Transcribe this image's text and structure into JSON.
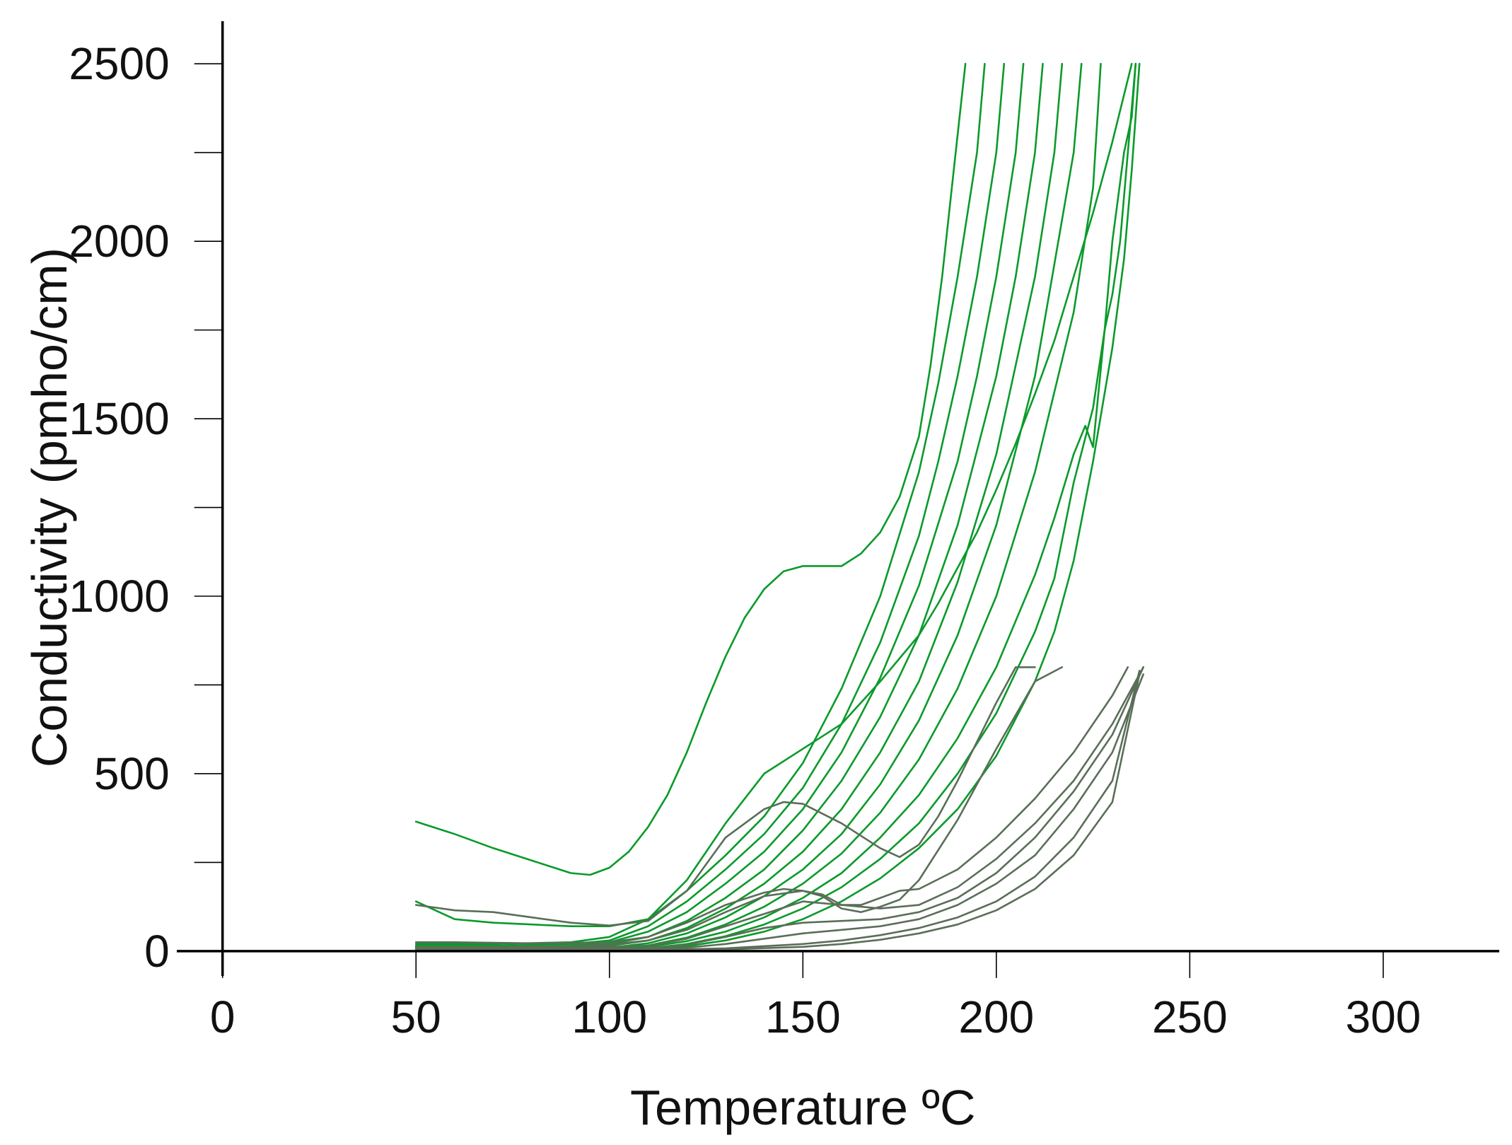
{
  "chart_data": {
    "type": "line",
    "title": "",
    "xlabel": "Temperature ºC",
    "ylabel": "Conductivity (pmho/cm)",
    "xlim": [
      -10,
      330
    ],
    "ylim": [
      -70,
      2620
    ],
    "xticks": [
      0,
      50,
      100,
      150,
      200,
      250,
      300
    ],
    "xtick_labels": [
      "0",
      "50",
      "100",
      "150",
      "200",
      "250",
      "300"
    ],
    "yticks": [
      0,
      500,
      1000,
      1500,
      2000,
      2500
    ],
    "ytick_labels": [
      "0",
      "500",
      "1000",
      "1500",
      "2000",
      "2500"
    ],
    "y_minor_ticks": [
      250,
      750,
      1250,
      1750,
      2250
    ],
    "grid": false,
    "legend": "none",
    "colors": {
      "green": "#0a9a2a",
      "gray": "#5a6e58",
      "axis": "#000000"
    },
    "series": [
      {
        "color": "green",
        "x": [
          50,
          60,
          70,
          80,
          90,
          95,
          100,
          105,
          110,
          115,
          120,
          125,
          130,
          135,
          140,
          145,
          150,
          155,
          160,
          165,
          170,
          175,
          180,
          183,
          186,
          189,
          192
        ],
        "y": [
          365,
          330,
          290,
          255,
          220,
          215,
          235,
          280,
          350,
          440,
          560,
          700,
          830,
          940,
          1020,
          1070,
          1085,
          1085,
          1085,
          1120,
          1180,
          1280,
          1450,
          1650,
          1900,
          2200,
          2500
        ]
      },
      {
        "color": "green",
        "x": [
          50,
          60,
          70,
          80,
          90,
          100,
          110,
          120,
          130,
          140,
          150,
          160,
          170,
          180,
          185,
          190,
          195,
          200,
          205,
          210,
          215,
          220,
          225,
          230,
          235
        ],
        "y": [
          140,
          90,
          80,
          75,
          70,
          70,
          90,
          200,
          360,
          500,
          570,
          640,
          760,
          890,
          980,
          1080,
          1180,
          1300,
          1430,
          1570,
          1720,
          1900,
          2080,
          2280,
          2500
        ]
      },
      {
        "color": "green",
        "x": [
          50,
          70,
          90,
          100,
          110,
          120,
          130,
          140,
          150,
          160,
          170,
          180,
          185,
          190,
          195,
          197
        ],
        "y": [
          20,
          20,
          25,
          40,
          90,
          170,
          270,
          380,
          530,
          740,
          1000,
          1350,
          1600,
          1900,
          2250,
          2500
        ]
      },
      {
        "color": "green",
        "x": [
          50,
          70,
          90,
          100,
          110,
          120,
          130,
          140,
          150,
          160,
          170,
          180,
          185,
          190,
          195,
          200,
          202
        ],
        "y": [
          15,
          15,
          20,
          30,
          70,
          140,
          230,
          330,
          460,
          640,
          870,
          1170,
          1380,
          1620,
          1900,
          2250,
          2500
        ]
      },
      {
        "color": "green",
        "x": [
          50,
          70,
          90,
          100,
          110,
          120,
          130,
          140,
          150,
          160,
          170,
          180,
          190,
          195,
          200,
          205,
          207
        ],
        "y": [
          10,
          10,
          15,
          25,
          55,
          110,
          190,
          280,
          400,
          560,
          770,
          1030,
          1380,
          1620,
          1900,
          2250,
          2500
        ]
      },
      {
        "color": "green",
        "x": [
          50,
          70,
          90,
          100,
          110,
          120,
          130,
          140,
          150,
          160,
          170,
          180,
          190,
          200,
          205,
          210,
          212
        ],
        "y": [
          8,
          8,
          10,
          20,
          40,
          85,
          150,
          230,
          340,
          480,
          660,
          890,
          1200,
          1620,
          1900,
          2250,
          2500
        ]
      },
      {
        "color": "green",
        "x": [
          50,
          70,
          90,
          100,
          110,
          120,
          130,
          140,
          150,
          160,
          170,
          180,
          190,
          200,
          210,
          215,
          217
        ],
        "y": [
          6,
          6,
          8,
          15,
          30,
          65,
          120,
          190,
          280,
          400,
          560,
          760,
          1040,
          1400,
          1900,
          2250,
          2500
        ]
      },
      {
        "color": "green",
        "x": [
          50,
          70,
          90,
          100,
          110,
          120,
          130,
          140,
          150,
          160,
          170,
          180,
          190,
          200,
          210,
          220,
          222
        ],
        "y": [
          5,
          5,
          6,
          10,
          22,
          50,
          95,
          155,
          230,
          330,
          470,
          650,
          890,
          1200,
          1620,
          2250,
          2500
        ]
      },
      {
        "color": "green",
        "x": [
          50,
          70,
          90,
          100,
          110,
          120,
          130,
          140,
          150,
          160,
          170,
          180,
          190,
          200,
          210,
          220,
          225,
          227
        ],
        "y": [
          4,
          4,
          5,
          8,
          16,
          38,
          75,
          125,
          190,
          275,
          390,
          540,
          740,
          1000,
          1350,
          1800,
          2150,
          2500
        ]
      },
      {
        "color": "green",
        "x": [
          50,
          70,
          90,
          100,
          110,
          120,
          130,
          140,
          150,
          160,
          170,
          180,
          190,
          200,
          210,
          215,
          220,
          223,
          225,
          228,
          230,
          233,
          235,
          236
        ],
        "y": [
          3,
          3,
          4,
          6,
          12,
          28,
          55,
          95,
          150,
          220,
          320,
          440,
          600,
          800,
          1060,
          1220,
          1400,
          1480,
          1420,
          1750,
          2000,
          2250,
          2350,
          2500
        ]
      },
      {
        "color": "green",
        "x": [
          50,
          70,
          90,
          100,
          110,
          120,
          130,
          140,
          150,
          160,
          170,
          180,
          190,
          200,
          210,
          215,
          220,
          225,
          228,
          230,
          232,
          234,
          236
        ],
        "y": [
          2,
          2,
          3,
          4,
          8,
          20,
          42,
          75,
          120,
          180,
          260,
          360,
          500,
          670,
          900,
          1050,
          1320,
          1530,
          1750,
          1850,
          2000,
          2250,
          2500
        ]
      },
      {
        "color": "green",
        "x": [
          50,
          70,
          90,
          100,
          110,
          120,
          130,
          140,
          150,
          160,
          170,
          180,
          190,
          200,
          210,
          215,
          220,
          225,
          230,
          233,
          235,
          237
        ],
        "y": [
          1,
          1,
          2,
          3,
          6,
          14,
          30,
          55,
          90,
          140,
          205,
          290,
          400,
          550,
          760,
          900,
          1100,
          1380,
          1700,
          1950,
          2200,
          2500
        ]
      },
      {
        "color": "gray",
        "x": [
          50,
          60,
          70,
          80,
          90,
          100,
          110,
          120,
          130,
          140,
          145,
          150,
          160,
          170,
          175,
          180,
          185,
          190,
          195,
          200,
          205,
          210
        ],
        "y": [
          130,
          115,
          110,
          95,
          80,
          72,
          85,
          170,
          320,
          400,
          420,
          415,
          360,
          290,
          265,
          300,
          380,
          480,
          590,
          700,
          800,
          800
        ]
      },
      {
        "color": "gray",
        "x": [
          50,
          60,
          80,
          100,
          110,
          120,
          130,
          140,
          145,
          150,
          155,
          160,
          165,
          170,
          175,
          180,
          190,
          200,
          210,
          217
        ],
        "y": [
          25,
          25,
          22,
          25,
          40,
          80,
          130,
          165,
          175,
          170,
          155,
          120,
          110,
          125,
          145,
          200,
          370,
          570,
          760,
          800
        ]
      },
      {
        "color": "gray",
        "x": [
          50,
          70,
          90,
          100,
          110,
          120,
          130,
          140,
          150,
          155,
          160,
          165,
          170,
          175,
          180,
          190,
          200,
          210,
          220,
          230,
          234
        ],
        "y": [
          12,
          12,
          14,
          18,
          30,
          60,
          110,
          155,
          170,
          160,
          130,
          130,
          150,
          170,
          175,
          230,
          320,
          430,
          560,
          720,
          800
        ]
      },
      {
        "color": "gray",
        "x": [
          50,
          70,
          90,
          110,
          120,
          130,
          140,
          150,
          160,
          170,
          180,
          190,
          200,
          210,
          220,
          230,
          238
        ],
        "y": [
          8,
          8,
          9,
          15,
          35,
          70,
          105,
          140,
          130,
          120,
          130,
          180,
          260,
          360,
          480,
          640,
          800
        ]
      },
      {
        "color": "gray",
        "x": [
          50,
          80,
          110,
          120,
          130,
          140,
          150,
          160,
          170,
          180,
          190,
          200,
          210,
          220,
          230,
          238
        ],
        "y": [
          5,
          5,
          8,
          18,
          40,
          65,
          80,
          85,
          90,
          110,
          150,
          220,
          320,
          450,
          610,
          800
        ]
      },
      {
        "color": "gray",
        "x": [
          50,
          80,
          110,
          120,
          130,
          140,
          150,
          160,
          170,
          180,
          190,
          200,
          210,
          220,
          230,
          238
        ],
        "y": [
          3,
          3,
          5,
          10,
          20,
          35,
          50,
          60,
          70,
          90,
          130,
          190,
          270,
          400,
          560,
          780
        ]
      },
      {
        "color": "gray",
        "x": [
          50,
          80,
          110,
          130,
          150,
          160,
          170,
          180,
          190,
          200,
          210,
          220,
          230,
          237
        ],
        "y": [
          2,
          2,
          3,
          8,
          20,
          30,
          45,
          65,
          95,
          140,
          210,
          320,
          480,
          790
        ]
      },
      {
        "color": "gray",
        "x": [
          50,
          80,
          110,
          130,
          150,
          160,
          170,
          180,
          190,
          200,
          210,
          220,
          230,
          237
        ],
        "y": [
          1,
          1,
          2,
          5,
          12,
          20,
          32,
          50,
          75,
          115,
          175,
          270,
          420,
          780
        ]
      }
    ]
  }
}
